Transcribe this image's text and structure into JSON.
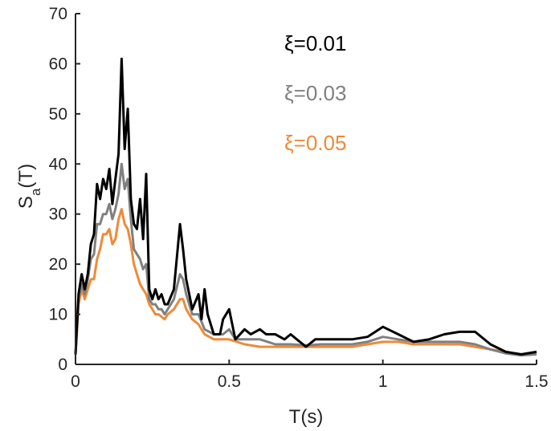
{
  "chart_data": {
    "type": "line",
    "xlabel": "T(s)",
    "ylabel": {
      "base": "S",
      "sub": "a",
      "tail": "(T)"
    },
    "xlim": [
      0,
      1.5
    ],
    "ylim": [
      0,
      70
    ],
    "xticks": [
      0,
      0.5,
      1,
      1.5
    ],
    "xtick_labels": [
      "0",
      "0.5",
      "1",
      "1.5"
    ],
    "yticks": [
      0,
      10,
      20,
      30,
      40,
      50,
      60,
      70
    ],
    "ytick_labels": [
      "0",
      "10",
      "20",
      "30",
      "40",
      "50",
      "60",
      "70"
    ],
    "grid": false,
    "legend_position": "top-right",
    "series": [
      {
        "name": "ξ=0.01",
        "color": "#000000",
        "x": [
          0,
          0.01,
          0.02,
          0.03,
          0.04,
          0.05,
          0.06,
          0.07,
          0.08,
          0.09,
          0.1,
          0.11,
          0.12,
          0.13,
          0.14,
          0.15,
          0.16,
          0.17,
          0.18,
          0.19,
          0.2,
          0.21,
          0.22,
          0.23,
          0.24,
          0.25,
          0.26,
          0.27,
          0.28,
          0.29,
          0.3,
          0.32,
          0.34,
          0.35,
          0.36,
          0.38,
          0.4,
          0.41,
          0.42,
          0.43,
          0.45,
          0.47,
          0.48,
          0.5,
          0.52,
          0.55,
          0.57,
          0.6,
          0.62,
          0.65,
          0.68,
          0.7,
          0.72,
          0.75,
          0.78,
          0.8,
          0.85,
          0.9,
          0.95,
          1.0,
          1.05,
          1.1,
          1.15,
          1.2,
          1.25,
          1.3,
          1.35,
          1.4,
          1.45,
          1.5
        ],
        "y": [
          2,
          14,
          18,
          15,
          18,
          24,
          26,
          36,
          33,
          37,
          35,
          39,
          32,
          37,
          42,
          61,
          43,
          51,
          33,
          28,
          27,
          33,
          25,
          38,
          15,
          13,
          15,
          13,
          14,
          12,
          12,
          15,
          28,
          23,
          17,
          11,
          14,
          9,
          15,
          10,
          6,
          6,
          9,
          11,
          5,
          7,
          6,
          7,
          6,
          6,
          5,
          6,
          5,
          3.5,
          5,
          5,
          5,
          5,
          5.5,
          7.5,
          6,
          4.5,
          5,
          6,
          6.5,
          6.5,
          4,
          2.5,
          2,
          2.5
        ]
      },
      {
        "name": "ξ=0.03",
        "color": "#808080",
        "x": [
          0,
          0.01,
          0.02,
          0.03,
          0.04,
          0.05,
          0.06,
          0.07,
          0.08,
          0.09,
          0.1,
          0.11,
          0.12,
          0.13,
          0.14,
          0.15,
          0.16,
          0.17,
          0.18,
          0.19,
          0.2,
          0.21,
          0.22,
          0.23,
          0.24,
          0.25,
          0.26,
          0.27,
          0.28,
          0.29,
          0.3,
          0.32,
          0.34,
          0.35,
          0.36,
          0.38,
          0.4,
          0.42,
          0.45,
          0.48,
          0.5,
          0.52,
          0.55,
          0.6,
          0.65,
          0.7,
          0.75,
          0.8,
          0.85,
          0.9,
          0.95,
          1.0,
          1.05,
          1.1,
          1.15,
          1.2,
          1.25,
          1.3,
          1.35,
          1.4,
          1.45,
          1.5
        ],
        "y": [
          2,
          13,
          16,
          14,
          17,
          21,
          22,
          28,
          28,
          30,
          30,
          32,
          29,
          31,
          34,
          40,
          35,
          37,
          29,
          23,
          22,
          21,
          19,
          20,
          13,
          12,
          12,
          11,
          11,
          10,
          11,
          13,
          18,
          17,
          14,
          10,
          10,
          7,
          6,
          6,
          7,
          5,
          5,
          5,
          4,
          4,
          3.8,
          4,
          4,
          4,
          4.5,
          5.5,
          5,
          4.5,
          4.5,
          4.5,
          4.5,
          4,
          3,
          2.2,
          1.8,
          2
        ]
      },
      {
        "name": "ξ=0.05",
        "color": "#ee8a3a",
        "x": [
          0,
          0.01,
          0.02,
          0.03,
          0.04,
          0.05,
          0.06,
          0.07,
          0.08,
          0.09,
          0.1,
          0.11,
          0.12,
          0.13,
          0.14,
          0.15,
          0.16,
          0.17,
          0.18,
          0.19,
          0.2,
          0.21,
          0.22,
          0.23,
          0.24,
          0.25,
          0.26,
          0.27,
          0.28,
          0.29,
          0.3,
          0.32,
          0.34,
          0.35,
          0.36,
          0.38,
          0.4,
          0.42,
          0.45,
          0.48,
          0.5,
          0.55,
          0.6,
          0.65,
          0.7,
          0.75,
          0.8,
          0.85,
          0.9,
          0.95,
          1.0,
          1.05,
          1.1,
          1.15,
          1.2,
          1.25,
          1.3,
          1.35,
          1.4,
          1.45,
          1.5
        ],
        "y": [
          2,
          12,
          15,
          13,
          15,
          17,
          17,
          21,
          23,
          26,
          26,
          27,
          24,
          25,
          29,
          31,
          28,
          27,
          24,
          20,
          18,
          16,
          15,
          14,
          12,
          11,
          10,
          10,
          9.5,
          9,
          10,
          11,
          13,
          13,
          11,
          9,
          8,
          6,
          5,
          5,
          5,
          4,
          3.5,
          3.5,
          3.5,
          3.5,
          3.5,
          3.5,
          3.5,
          4,
          4.5,
          4.5,
          4,
          4,
          4,
          4,
          3.5,
          3,
          2.5,
          2,
          2
        ]
      }
    ]
  }
}
